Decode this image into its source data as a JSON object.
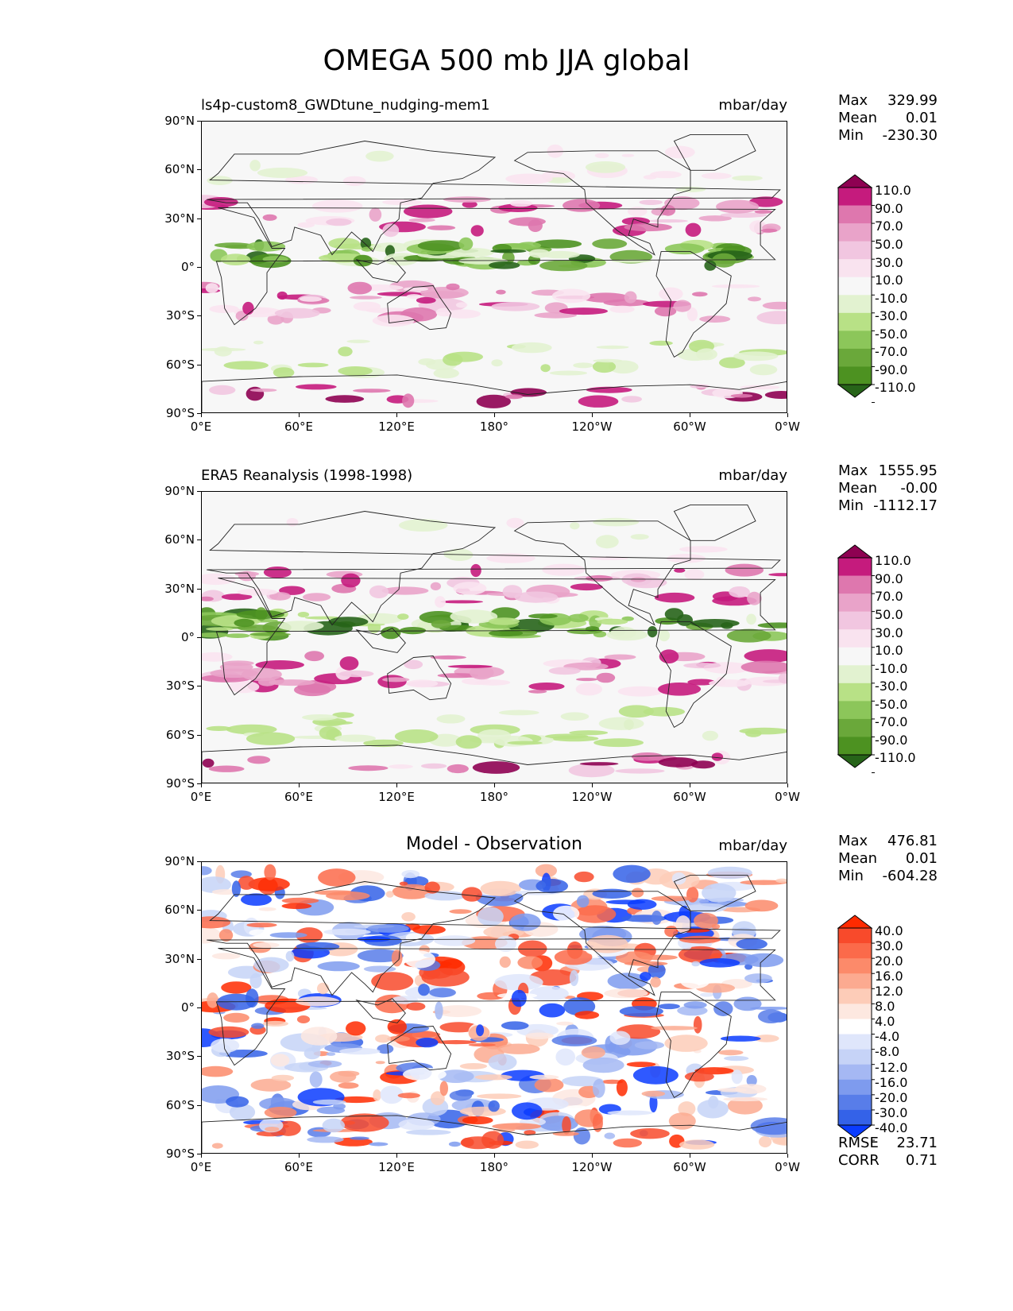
{
  "title": "OMEGA 500 mb JJA global",
  "chart_data": [
    {
      "type": "heatmap",
      "map_projection": "plate-carree",
      "title_left": "ls4p-custom8_GWDtune_nudging-mem1",
      "title_center": "",
      "units": "mbar/day",
      "stats": [
        {
          "label": "Max",
          "value": "329.99"
        },
        {
          "label": "Mean",
          "value": "0.01"
        },
        {
          "label": "Min",
          "value": "-230.30"
        }
      ],
      "colorbar_labels": [
        "110.0",
        "90.0",
        "70.0",
        "50.0",
        "30.0",
        "10.0",
        "-10.0",
        "-30.0",
        "-50.0",
        "-70.0",
        "-90.0",
        "-110.0"
      ],
      "colorbar_colors": [
        "#8e0152",
        "#c51b7d",
        "#de77ae",
        "#e9a3c9",
        "#f1c6e0",
        "#f9e3ef",
        "#f7f7f7",
        "#e2f2d0",
        "#b8e186",
        "#8cc65a",
        "#6aa83a",
        "#4d9221",
        "#276419"
      ],
      "x_ticks": [
        "0°E",
        "60°E",
        "120°E",
        "180°",
        "120°W",
        "60°W",
        "0°W"
      ],
      "y_ticks": [
        "90°N",
        "60°N",
        "30°N",
        "0°",
        "30°S",
        "60°S",
        "90°S"
      ],
      "extra_stats": []
    },
    {
      "type": "heatmap",
      "map_projection": "plate-carree",
      "title_left": "ERA5 Reanalysis (1998-1998)",
      "title_center": "",
      "units": "mbar/day",
      "stats": [
        {
          "label": "Max",
          "value": "1555.95"
        },
        {
          "label": "Mean",
          "value": "-0.00"
        },
        {
          "label": "Min",
          "value": "-1112.17"
        }
      ],
      "colorbar_labels": [
        "110.0",
        "90.0",
        "70.0",
        "50.0",
        "30.0",
        "10.0",
        "-10.0",
        "-30.0",
        "-50.0",
        "-70.0",
        "-90.0",
        "-110.0"
      ],
      "colorbar_colors": [
        "#8e0152",
        "#c51b7d",
        "#de77ae",
        "#e9a3c9",
        "#f1c6e0",
        "#f9e3ef",
        "#f7f7f7",
        "#e2f2d0",
        "#b8e186",
        "#8cc65a",
        "#6aa83a",
        "#4d9221",
        "#276419"
      ],
      "x_ticks": [
        "0°E",
        "60°E",
        "120°E",
        "180°",
        "120°W",
        "60°W",
        "0°W"
      ],
      "y_ticks": [
        "90°N",
        "60°N",
        "30°N",
        "0°",
        "30°S",
        "60°S",
        "90°S"
      ],
      "extra_stats": []
    },
    {
      "type": "heatmap",
      "map_projection": "plate-carree",
      "title_left": "",
      "title_center": "Model - Observation",
      "units": "mbar/day",
      "stats": [
        {
          "label": "Max",
          "value": "476.81"
        },
        {
          "label": "Mean",
          "value": "0.01"
        },
        {
          "label": "Min",
          "value": "-604.28"
        }
      ],
      "colorbar_labels": [
        "40.0",
        "30.0",
        "20.0",
        "16.0",
        "12.0",
        "8.0",
        "4.0",
        "-4.0",
        "-8.0",
        "-12.0",
        "-16.0",
        "-20.0",
        "-30.0",
        "-40.0"
      ],
      "colorbar_colors": [
        "#ff2a00",
        "#f84a2b",
        "#fb6a4a",
        "#fc8a6a",
        "#fcaa90",
        "#fdccb8",
        "#fde8e0",
        "#ffffff",
        "#dfe6fb",
        "#c6d3f7",
        "#a5b8f3",
        "#7e9bee",
        "#587de9",
        "#3462e8",
        "#0a3cff"
      ],
      "x_ticks": [
        "0°E",
        "60°E",
        "120°E",
        "180°",
        "120°W",
        "60°W",
        "0°W"
      ],
      "y_ticks": [
        "90°N",
        "60°N",
        "30°N",
        "0°",
        "30°S",
        "60°S",
        "90°S"
      ],
      "extra_stats": [
        {
          "label": "RMSE",
          "value": "23.71"
        },
        {
          "label": "CORR",
          "value": "0.71"
        }
      ]
    }
  ]
}
